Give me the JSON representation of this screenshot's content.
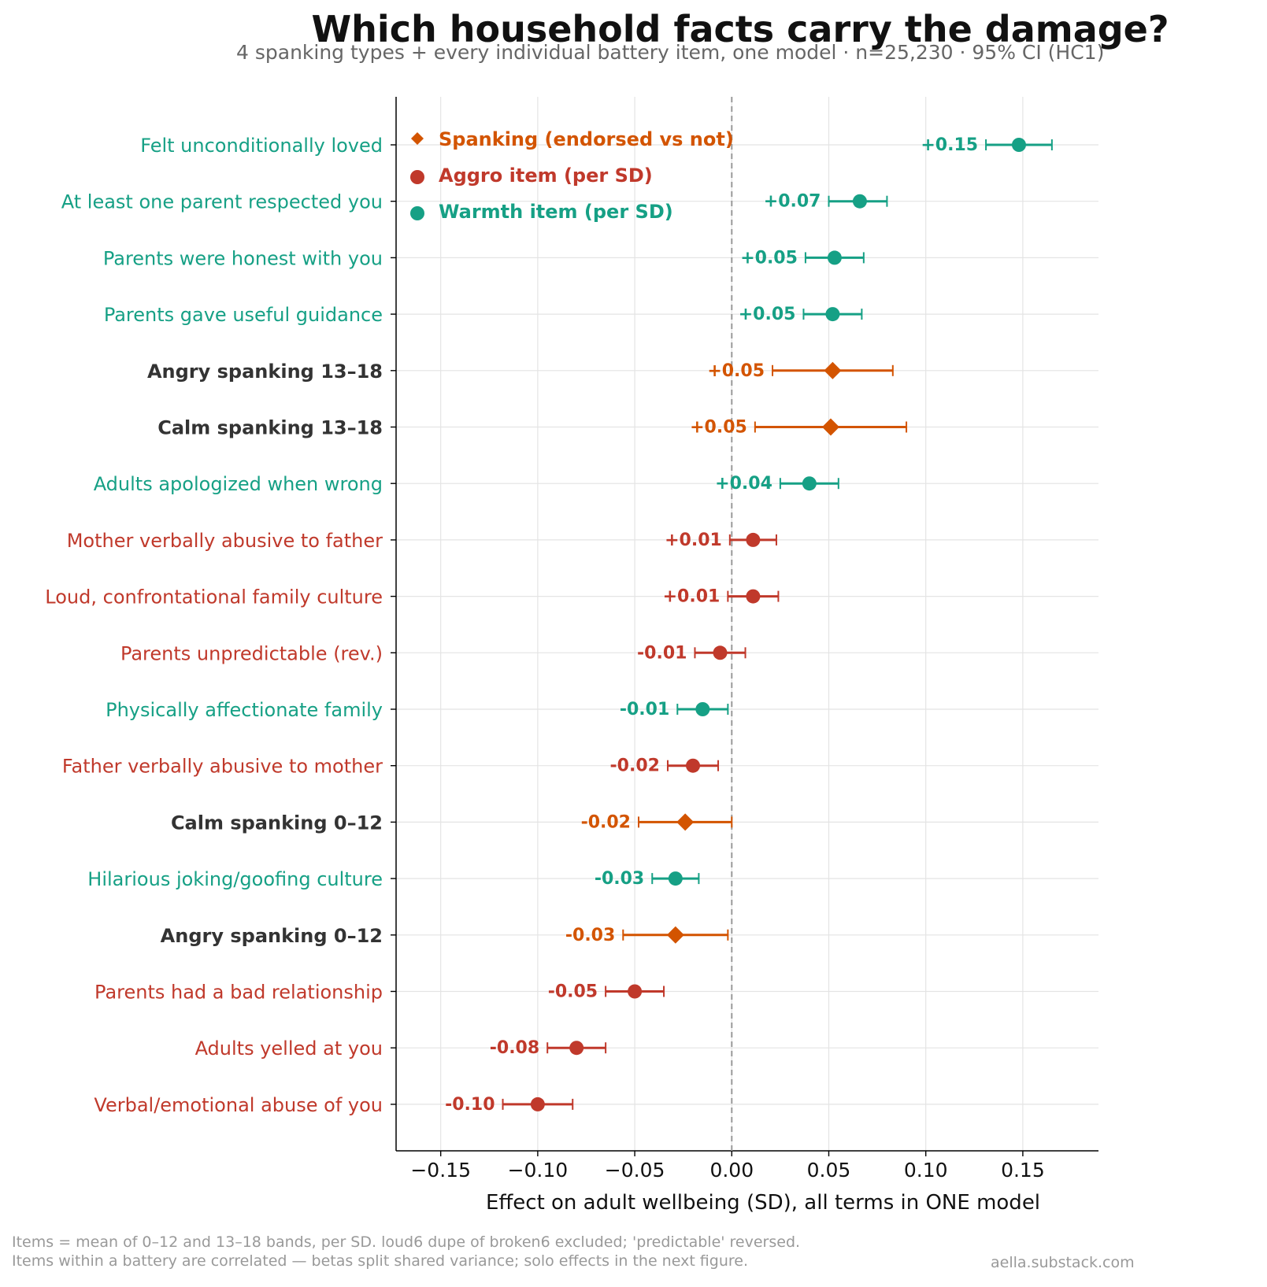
{
  "chart_data": {
    "type": "scatter",
    "title": "Which household facts carry the damage?",
    "subtitle": "4 spanking types + every individual battery item, one model · n=25,230 · 95% CI (HC1)",
    "xlabel": "Effect on adult wellbeing (SD), all terms in ONE model",
    "xlim": [
      -0.173,
      0.189
    ],
    "xticks": [
      -0.15,
      -0.1,
      -0.05,
      0.0,
      0.05,
      0.1,
      0.15
    ],
    "xtick_labels": [
      "−0.15",
      "−0.10",
      "−0.05",
      "0.00",
      "0.05",
      "0.10",
      "0.15"
    ],
    "grid": true,
    "reference_line": 0,
    "legend_placement": "top-left",
    "legend": [
      {
        "label": "Spanking (endorsed vs not)",
        "group": "spanking",
        "marker": "diamond"
      },
      {
        "label": "Aggro item (per SD)",
        "group": "aggro",
        "marker": "circle"
      },
      {
        "label": "Warmth item (per SD)",
        "group": "warmth",
        "marker": "circle"
      }
    ],
    "colors": {
      "spanking": "#d35400",
      "aggro": "#c0392b",
      "warmth": "#16a085",
      "spanking_label": "#333333"
    },
    "items": [
      {
        "label": "Felt unconditionally loved",
        "group": "warmth",
        "estimate": 0.148,
        "ci_low": 0.131,
        "ci_high": 0.165,
        "value_label": "+0.15"
      },
      {
        "label": "At least one parent respected you",
        "group": "warmth",
        "estimate": 0.066,
        "ci_low": 0.05,
        "ci_high": 0.08,
        "value_label": "+0.07"
      },
      {
        "label": "Parents were honest with you",
        "group": "warmth",
        "estimate": 0.053,
        "ci_low": 0.038,
        "ci_high": 0.068,
        "value_label": "+0.05"
      },
      {
        "label": "Parents gave useful guidance",
        "group": "warmth",
        "estimate": 0.052,
        "ci_low": 0.037,
        "ci_high": 0.067,
        "value_label": "+0.05"
      },
      {
        "label": "Angry spanking 13–18",
        "group": "spanking",
        "estimate": 0.052,
        "ci_low": 0.021,
        "ci_high": 0.083,
        "value_label": "+0.05"
      },
      {
        "label": "Calm spanking 13–18",
        "group": "spanking",
        "estimate": 0.051,
        "ci_low": 0.012,
        "ci_high": 0.09,
        "value_label": "+0.05"
      },
      {
        "label": "Adults apologized when wrong",
        "group": "warmth",
        "estimate": 0.04,
        "ci_low": 0.025,
        "ci_high": 0.055,
        "value_label": "+0.04"
      },
      {
        "label": "Mother verbally abusive to father",
        "group": "aggro",
        "estimate": 0.011,
        "ci_low": -0.001,
        "ci_high": 0.023,
        "value_label": "+0.01"
      },
      {
        "label": "Loud, confrontational family culture",
        "group": "aggro",
        "estimate": 0.011,
        "ci_low": -0.002,
        "ci_high": 0.024,
        "value_label": "+0.01"
      },
      {
        "label": "Parents unpredictable (rev.)",
        "group": "aggro",
        "estimate": -0.006,
        "ci_low": -0.019,
        "ci_high": 0.007,
        "value_label": "-0.01"
      },
      {
        "label": "Physically affectionate family",
        "group": "warmth",
        "estimate": -0.015,
        "ci_low": -0.028,
        "ci_high": -0.002,
        "value_label": "-0.01"
      },
      {
        "label": "Father verbally abusive to mother",
        "group": "aggro",
        "estimate": -0.02,
        "ci_low": -0.033,
        "ci_high": -0.007,
        "value_label": "-0.02"
      },
      {
        "label": "Calm spanking 0–12",
        "group": "spanking",
        "estimate": -0.024,
        "ci_low": -0.048,
        "ci_high": 0.0,
        "value_label": "-0.02"
      },
      {
        "label": "Hilarious joking/goofing culture",
        "group": "warmth",
        "estimate": -0.029,
        "ci_low": -0.041,
        "ci_high": -0.017,
        "value_label": "-0.03"
      },
      {
        "label": "Angry spanking 0–12",
        "group": "spanking",
        "estimate": -0.029,
        "ci_low": -0.056,
        "ci_high": -0.002,
        "value_label": "-0.03"
      },
      {
        "label": "Parents had a bad relationship",
        "group": "aggro",
        "estimate": -0.05,
        "ci_low": -0.065,
        "ci_high": -0.035,
        "value_label": "-0.05"
      },
      {
        "label": "Adults yelled at you",
        "group": "aggro",
        "estimate": -0.08,
        "ci_low": -0.095,
        "ci_high": -0.065,
        "value_label": "-0.08"
      },
      {
        "label": "Verbal/emotional abuse of you",
        "group": "aggro",
        "estimate": -0.1,
        "ci_low": -0.118,
        "ci_high": -0.082,
        "value_label": "-0.10"
      }
    ]
  },
  "footnote_lines": [
    "Items = mean of 0–12 and 13–18 bands, per SD. loud6 dupe of broken6 excluded; 'predictable' reversed.",
    "Items within a battery are correlated — betas split shared variance; solo effects in the next figure."
  ],
  "credit": "aella.substack.com"
}
